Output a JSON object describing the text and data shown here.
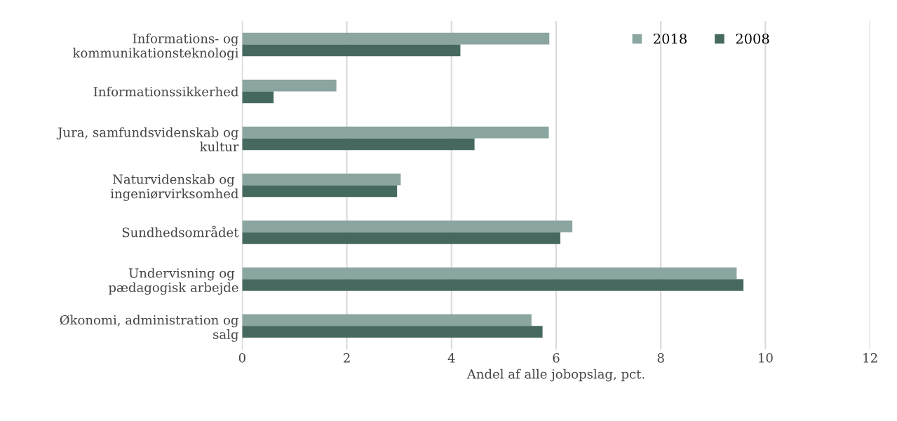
{
  "chart_data": {
    "type": "bar",
    "orientation": "horizontal",
    "xlabel": "Andel af alle jobopslag, pct.",
    "categories": [
      "Informations- og\nkommunikationsteknologi",
      "Informationssikkerhed",
      "Jura, samfundsvidenskab og\nkultur",
      "Naturvidenskab og \ningeniørvirksomhed",
      "Sundhedsområdet",
      "Undervisning og \npædagogisk arbejde",
      "Økonomi, administration og\nsalg"
    ],
    "series": [
      {
        "name": "2018",
        "color": "#8ba5a0",
        "values": [
          5.87,
          1.8,
          5.86,
          3.03,
          6.31,
          9.45,
          5.53
        ]
      },
      {
        "name": "2008",
        "color": "#46695f",
        "values": [
          4.17,
          0.6,
          4.44,
          2.96,
          6.08,
          9.58,
          5.74
        ]
      }
    ],
    "xlim": [
      0,
      12
    ],
    "xticks": [
      0,
      2,
      4,
      6,
      8,
      10,
      12
    ],
    "grid": "x",
    "legend": "top right"
  }
}
